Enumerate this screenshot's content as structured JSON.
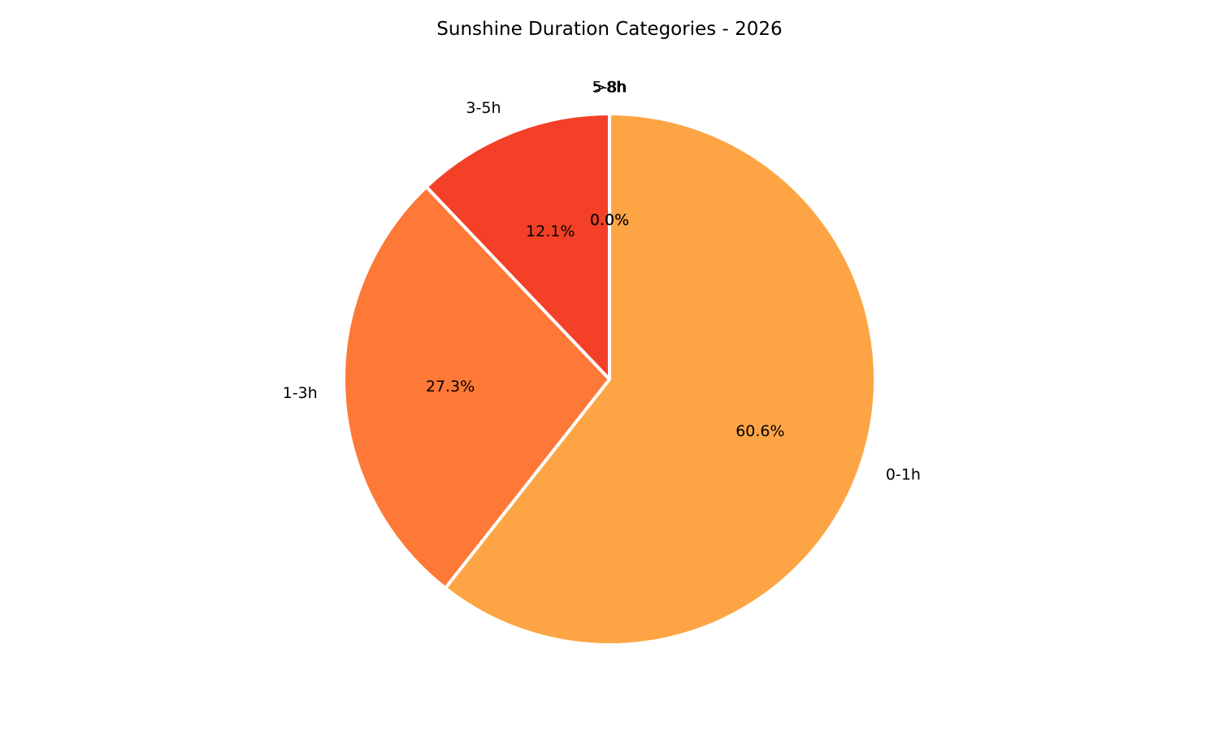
{
  "chart_data": {
    "type": "pie",
    "title": "Sunshine Duration Categories - 2026",
    "slices": [
      {
        "label": "0-1h",
        "value": 60.6,
        "pct_label": "60.6%",
        "color": "#FDA544"
      },
      {
        "label": "1-3h",
        "value": 27.3,
        "pct_label": "27.3%",
        "color": "#FE7837"
      },
      {
        "label": "3-5h",
        "value": 12.1,
        "pct_label": "12.1%",
        "color": "#F44027"
      },
      {
        "label": "5-8h",
        "value": 0.0,
        "pct_label": "0.0%",
        "color": "#E0201E"
      },
      {
        "label": ">8h",
        "value": 0.0,
        "pct_label": "0.0%",
        "color": "#B5111B"
      }
    ],
    "start_angle": "top",
    "direction": "clockwise",
    "slice_edge_color": "#FFFFFF",
    "legend": "none"
  }
}
